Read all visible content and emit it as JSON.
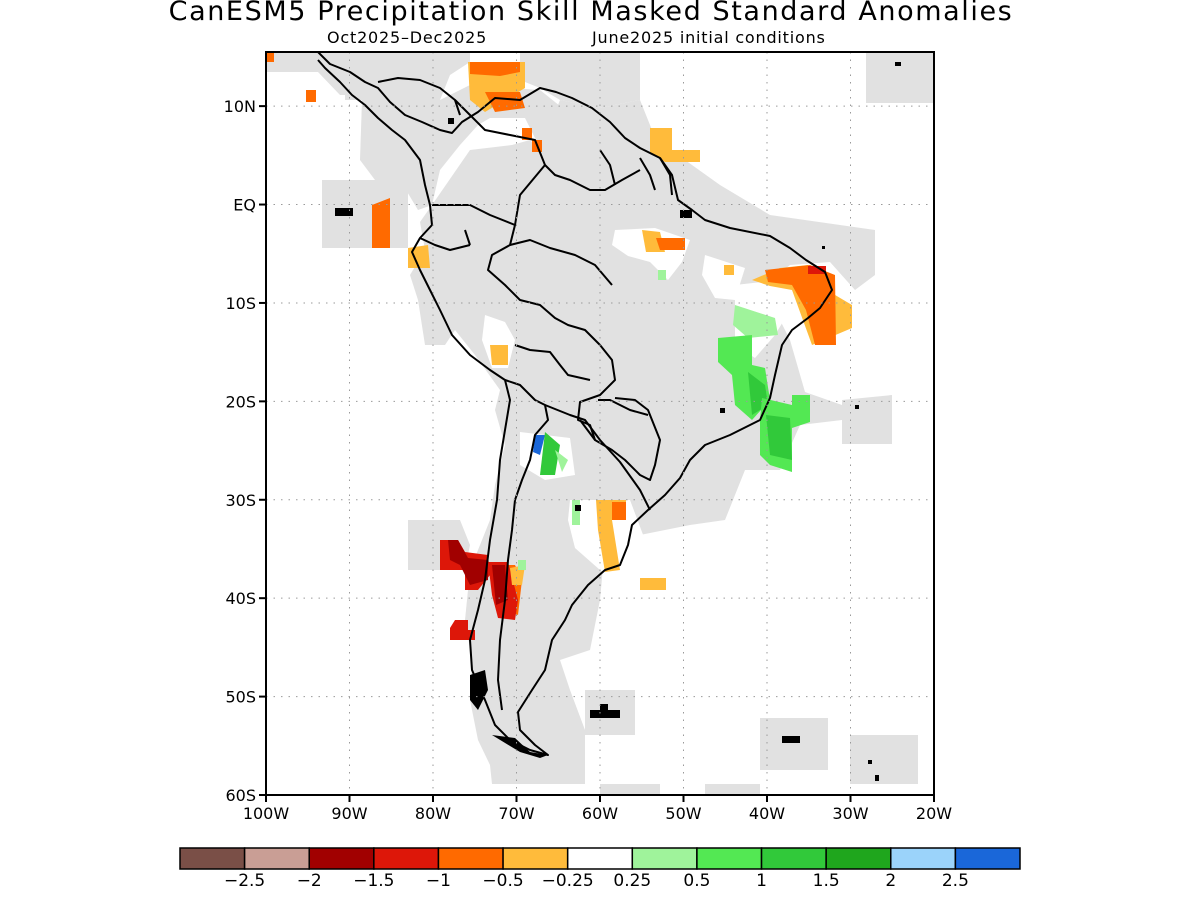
{
  "title": "CanESM5 Precipitation Skill Masked Standard Anomalies",
  "subtitle_left": "Oct2025–Dec2025",
  "subtitle_right": "June2025 initial conditions",
  "y_ticks": [
    "10N",
    "EQ",
    "10S",
    "20S",
    "30S",
    "40S",
    "50S",
    "60S"
  ],
  "x_ticks": [
    "100W",
    "90W",
    "80W",
    "70W",
    "60W",
    "50W",
    "40W",
    "30W",
    "20W"
  ],
  "colorbar": {
    "colors": [
      "#7a4f47",
      "#c99e95",
      "#a10000",
      "#dd1709",
      "#ff6a00",
      "#ffbb3b",
      "#ffffff",
      "#9ff39b",
      "#53e853",
      "#31c93a",
      "#1fa61d",
      "#9bd3fa",
      "#1a67d9"
    ],
    "labels": [
      "−2.5",
      "−2",
      "−1.5",
      "−1",
      "−0.5",
      "−0.25",
      "0.25",
      "0.5",
      "1",
      "1.5",
      "2",
      "2.5"
    ]
  },
  "mask_color": "#e1e1e1",
  "coast_color": "#000000"
}
